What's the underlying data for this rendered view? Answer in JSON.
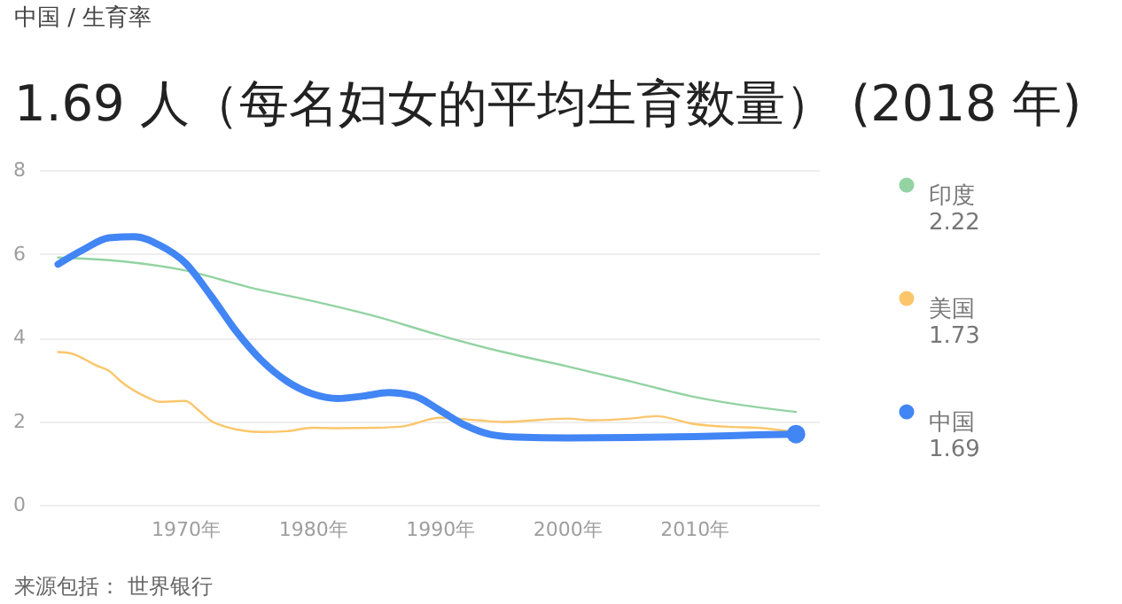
{
  "chart_data": {
    "type": "line",
    "title": "1.69 人（每名妇女的平均生育数量） (2018 年)",
    "annotations": [
      "中国 / 生育率",
      "来源包括： 世界银行",
      "2.22",
      "1.73",
      "1.69"
    ],
    "xlim": [
      1958.5,
      2019.8
    ],
    "xticks": [
      {
        "value": 1970,
        "label": "1970年"
      },
      {
        "value": 1980,
        "label": "1980年"
      },
      {
        "value": 1990,
        "label": "1990年"
      },
      {
        "value": 2000,
        "label": "2000年"
      },
      {
        "value": 2010,
        "label": "2010年"
      }
    ],
    "ylim": [
      0,
      8
    ],
    "yticks": [
      0,
      2,
      4,
      6,
      8
    ],
    "grid": "y",
    "legend": "right",
    "series": [
      {
        "name": "印度",
        "color": "#93d3a2",
        "x": [
          1960,
          1965,
          1970,
          1975,
          1980,
          1985,
          1990,
          1995,
          2000,
          2005,
          2010,
          2015,
          2018
        ],
        "values": [
          5.91,
          5.82,
          5.6,
          5.2,
          4.87,
          4.5,
          4.05,
          3.65,
          3.31,
          2.95,
          2.58,
          2.33,
          2.22
        ]
      },
      {
        "name": "美国",
        "color": "#fbc66b",
        "x": [
          1960,
          1961,
          1963,
          1964,
          1965,
          1967,
          1968,
          1970,
          1971,
          1972,
          1973,
          1976,
          1978,
          1980,
          1982,
          1985,
          1987,
          1990,
          1993,
          1995,
          2000,
          2002,
          2005,
          2007,
          2010,
          2013,
          2015,
          2018
        ],
        "values": [
          3.65,
          3.62,
          3.33,
          3.2,
          2.93,
          2.57,
          2.46,
          2.48,
          2.27,
          2.01,
          1.88,
          1.74,
          1.76,
          1.84,
          1.83,
          1.84,
          1.87,
          2.08,
          2.02,
          1.98,
          2.06,
          2.02,
          2.06,
          2.12,
          1.93,
          1.86,
          1.84,
          1.73
        ]
      },
      {
        "name": "中国",
        "color": "#4285f4",
        "x": [
          1960,
          1962,
          1964,
          1966,
          1968,
          1970,
          1972,
          1974,
          1976,
          1978,
          1980,
          1982,
          1984,
          1986,
          1988,
          1990,
          1992,
          1994,
          1996,
          2000,
          2005,
          2010,
          2015,
          2018
        ],
        "values": [
          5.75,
          6.1,
          6.38,
          6.41,
          6.2,
          5.78,
          5.0,
          4.15,
          3.45,
          2.95,
          2.65,
          2.54,
          2.6,
          2.68,
          2.6,
          2.26,
          1.9,
          1.68,
          1.62,
          1.6,
          1.61,
          1.63,
          1.67,
          1.69
        ]
      }
    ]
  }
}
